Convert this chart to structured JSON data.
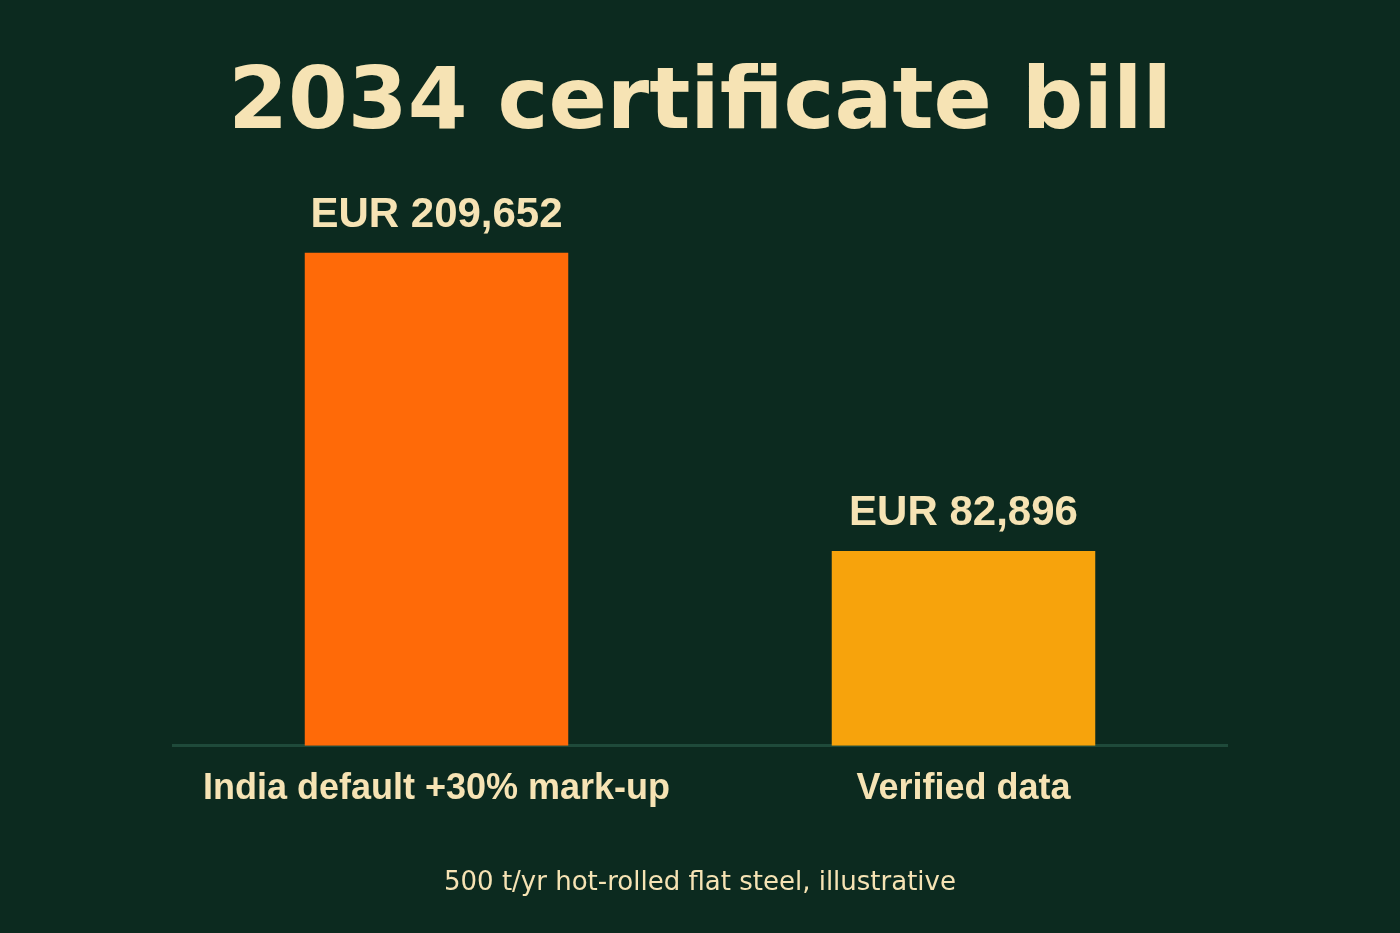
{
  "chart_data": {
    "type": "bar",
    "title": "2034 certificate bill",
    "categories": [
      "India default +30% mark-up",
      "Verified data"
    ],
    "values": [
      209652,
      82896
    ],
    "colors": [
      "#ff6a08",
      "#f7a30c"
    ],
    "value_labels": [
      "EUR 209,652",
      "EUR 82,896"
    ],
    "annotations": [
      "500 t/yr hot-rolled flat steel, illustrative"
    ],
    "legend": false,
    "tick_labels": "x"
  }
}
